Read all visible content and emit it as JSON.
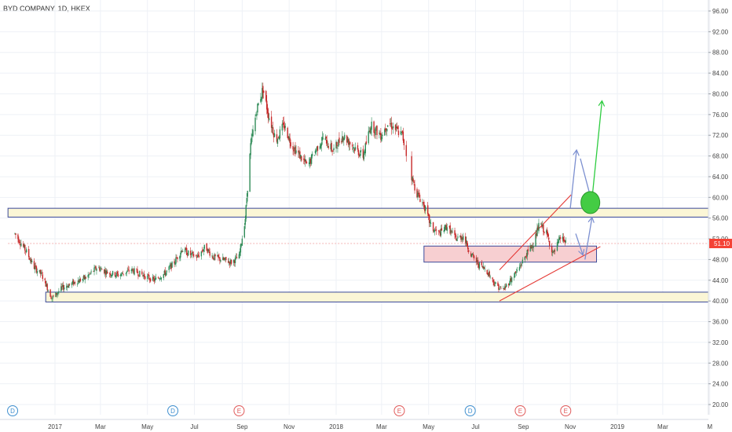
{
  "chart_data": {
    "type": "candlestick",
    "title": "BYD COMPANY, 1D, HKEX",
    "y_axis": {
      "min": 20,
      "max": 96,
      "ticks": [
        "96.00",
        "92.00",
        "88.00",
        "84.00",
        "80.00",
        "76.00",
        "72.00",
        "68.00",
        "64.00",
        "60.00",
        "56.00",
        "52.00",
        "48.00",
        "44.00",
        "40.00",
        "36.00",
        "32.00",
        "28.00",
        "24.00",
        "20.00"
      ]
    },
    "x_axis": {
      "ticks": [
        {
          "label": "2017",
          "date": "2017-01-01"
        },
        {
          "label": "Mar",
          "date": "2017-03-01"
        },
        {
          "label": "May",
          "date": "2017-05-01"
        },
        {
          "label": "Jul",
          "date": "2017-07-01"
        },
        {
          "label": "Sep",
          "date": "2017-09-01"
        },
        {
          "label": "Nov",
          "date": "2017-11-01"
        },
        {
          "label": "2018",
          "date": "2018-01-01"
        },
        {
          "label": "Mar",
          "date": "2018-03-01"
        },
        {
          "label": "May",
          "date": "2018-05-01"
        },
        {
          "label": "Jul",
          "date": "2018-07-01"
        },
        {
          "label": "Sep",
          "date": "2018-09-01"
        },
        {
          "label": "Nov",
          "date": "2018-11-01"
        },
        {
          "label": "2019",
          "date": "2019-01-01"
        },
        {
          "label": "Mar",
          "date": "2019-03-01"
        },
        {
          "label": "M",
          "date": "2019-05-01"
        }
      ]
    },
    "last_price": {
      "label": "51.10",
      "value": 51.1
    },
    "price_path": [
      [
        "2016-11-10",
        53.0
      ],
      [
        "2016-11-25",
        49.5
      ],
      [
        "2016-12-05",
        46.5
      ],
      [
        "2016-12-15",
        45.0
      ],
      [
        "2016-12-28",
        40.5
      ],
      [
        "2017-01-10",
        42.5
      ],
      [
        "2017-01-25",
        43.5
      ],
      [
        "2017-02-10",
        44.5
      ],
      [
        "2017-02-25",
        46.5
      ],
      [
        "2017-03-10",
        45.5
      ],
      [
        "2017-03-25",
        45.0
      ],
      [
        "2017-04-10",
        46.0
      ],
      [
        "2017-04-25",
        45.0
      ],
      [
        "2017-05-10",
        44.0
      ],
      [
        "2017-05-25",
        45.5
      ],
      [
        "2017-06-05",
        47.5
      ],
      [
        "2017-06-15",
        50.0
      ],
      [
        "2017-06-25",
        49.0
      ],
      [
        "2017-07-05",
        48.5
      ],
      [
        "2017-07-15",
        50.5
      ],
      [
        "2017-07-25",
        48.5
      ],
      [
        "2017-08-05",
        48.0
      ],
      [
        "2017-08-18",
        47.5
      ],
      [
        "2017-08-28",
        48.5
      ],
      [
        "2017-09-05",
        56.0
      ],
      [
        "2017-09-12",
        70.0
      ],
      [
        "2017-09-20",
        77.0
      ],
      [
        "2017-09-28",
        81.0
      ],
      [
        "2017-10-05",
        76.0
      ],
      [
        "2017-10-15",
        71.0
      ],
      [
        "2017-10-25",
        74.0
      ],
      [
        "2017-11-05",
        70.0
      ],
      [
        "2017-11-15",
        68.0
      ],
      [
        "2017-11-25",
        66.0
      ],
      [
        "2017-12-05",
        69.0
      ],
      [
        "2017-12-15",
        71.5
      ],
      [
        "2017-12-28",
        69.0
      ],
      [
        "2018-01-10",
        72.0
      ],
      [
        "2018-01-25",
        69.5
      ],
      [
        "2018-02-05",
        68.0
      ],
      [
        "2018-02-15",
        74.0
      ],
      [
        "2018-02-28",
        72.0
      ],
      [
        "2018-03-10",
        74.5
      ],
      [
        "2018-03-20",
        73.0
      ],
      [
        "2018-03-28",
        72.0
      ],
      [
        "2018-04-05",
        66.0
      ],
      [
        "2018-04-15",
        61.0
      ],
      [
        "2018-04-25",
        58.5
      ],
      [
        "2018-05-05",
        54.0
      ],
      [
        "2018-05-15",
        53.0
      ],
      [
        "2018-05-25",
        54.5
      ],
      [
        "2018-06-05",
        52.0
      ],
      [
        "2018-06-15",
        52.5
      ],
      [
        "2018-06-25",
        49.0
      ],
      [
        "2018-07-05",
        47.0
      ],
      [
        "2018-07-15",
        46.0
      ],
      [
        "2018-07-25",
        43.5
      ],
      [
        "2018-08-05",
        42.0
      ],
      [
        "2018-08-15",
        44.0
      ],
      [
        "2018-08-25",
        46.0
      ],
      [
        "2018-09-05",
        49.0
      ],
      [
        "2018-09-15",
        51.5
      ],
      [
        "2018-09-22",
        55.0
      ],
      [
        "2018-10-01",
        53.0
      ],
      [
        "2018-10-10",
        49.0
      ],
      [
        "2018-10-20",
        52.5
      ],
      [
        "2018-10-26",
        51.1
      ]
    ],
    "zones": [
      {
        "name": "support-zone-low",
        "from": "2016-12-20",
        "to": "2019-06-01",
        "low": 39.8,
        "high": 41.7,
        "fill": "#fbf6d6",
        "stroke": "#3b4a9a"
      },
      {
        "name": "resistance-zone",
        "from": "2016-11-01",
        "to": "2019-06-01",
        "low": 56.2,
        "high": 57.9,
        "fill": "#fbf6d6",
        "stroke": "#3b4a9a"
      },
      {
        "name": "demand-zone",
        "from": "2018-04-25",
        "to": "2018-12-05",
        "low": 47.5,
        "high": 50.6,
        "fill": "#f7cfd1",
        "stroke": "#3b4a9a"
      }
    ],
    "trendlines": [
      {
        "name": "channel-upper",
        "from": [
          "2018-08-01",
          46.0
        ],
        "to": [
          "2018-11-02",
          60.5
        ],
        "color": "#e53935"
      },
      {
        "name": "channel-lower",
        "from": [
          "2018-08-01",
          40.0
        ],
        "to": [
          "2018-12-10",
          50.5
        ],
        "color": "#e53935"
      },
      {
        "name": "reference-price-line",
        "from": [
          "2016-11-01",
          51.1
        ],
        "to": [
          "2019-06-01",
          51.1
        ],
        "color": "#ef9a9a"
      }
    ],
    "projection_arrows": [
      {
        "name": "arrow-up-1",
        "from": [
          "2018-11-01",
          58.0
        ],
        "to": [
          "2018-11-09",
          69.0
        ],
        "color": "#7b8fd0"
      },
      {
        "name": "arrow-down-1",
        "from": [
          "2018-11-14",
          67.5
        ],
        "to": [
          "2018-11-30",
          58.5
        ],
        "color": "#7b8fd0"
      },
      {
        "name": "arrow-down-2",
        "from": [
          "2018-11-08",
          53.0
        ],
        "to": [
          "2018-11-17",
          49.0
        ],
        "color": "#7b8fd0"
      },
      {
        "name": "arrow-up-2",
        "from": [
          "2018-11-20",
          48.0
        ],
        "to": [
          "2018-11-29",
          56.0
        ],
        "color": "#7b8fd0"
      },
      {
        "name": "arrow-green",
        "from": [
          "2018-11-29",
          59.5
        ],
        "to": [
          "2018-12-12",
          78.5
        ],
        "color": "#2ecc40"
      }
    ],
    "target_circle": {
      "date": "2018-11-27",
      "price": 59.0,
      "fill": "#44cc44",
      "stroke": "#2a9a2a"
    },
    "events": [
      {
        "label": "D",
        "date": "2016-11-07",
        "color": "#3f8fcf"
      },
      {
        "label": "D",
        "date": "2017-06-03",
        "color": "#3f8fcf"
      },
      {
        "label": "E",
        "date": "2017-08-28",
        "color": "#e05a5a"
      },
      {
        "label": "E",
        "date": "2018-03-24",
        "color": "#e05a5a"
      },
      {
        "label": "D",
        "date": "2018-06-24",
        "color": "#3f8fcf"
      },
      {
        "label": "E",
        "date": "2018-08-28",
        "color": "#e05a5a"
      },
      {
        "label": "E",
        "date": "2018-10-26",
        "color": "#e05a5a"
      }
    ],
    "colors": {
      "up": "#2e8b57",
      "down": "#c62828",
      "grid": "#eef1f6",
      "axis_text": "#444444",
      "price_label_bg": "#f44336"
    }
  }
}
